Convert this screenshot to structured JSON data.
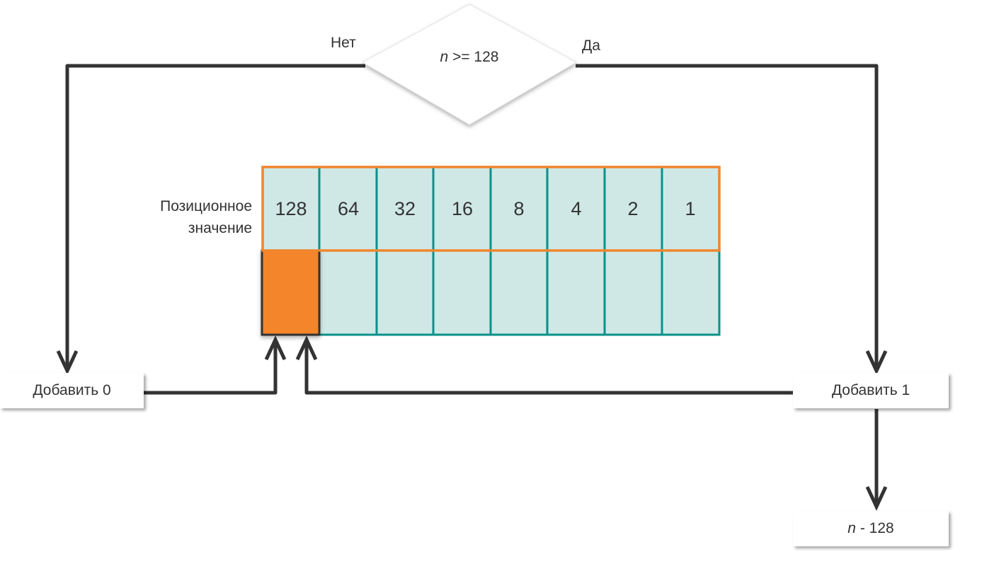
{
  "decision": {
    "variable": "n",
    "condition": ">= 128",
    "no_label": "Нет",
    "yes_label": "Да"
  },
  "place_value": {
    "label_line1": "Позиционное",
    "label_line2": "значение",
    "values": [
      "128",
      "64",
      "32",
      "16",
      "8",
      "4",
      "2",
      "1"
    ]
  },
  "actions": {
    "add_zero": "Добавить 0",
    "add_one": "Добавить 1",
    "subtract_variable": "n",
    "subtract_rest": "- 128"
  },
  "colors": {
    "cell_fill": "#cfe8e6",
    "cell_border": "#0a9189",
    "highlight_border": "#f0862d",
    "highlight_fill": "#f5852a",
    "line": "#333333"
  }
}
